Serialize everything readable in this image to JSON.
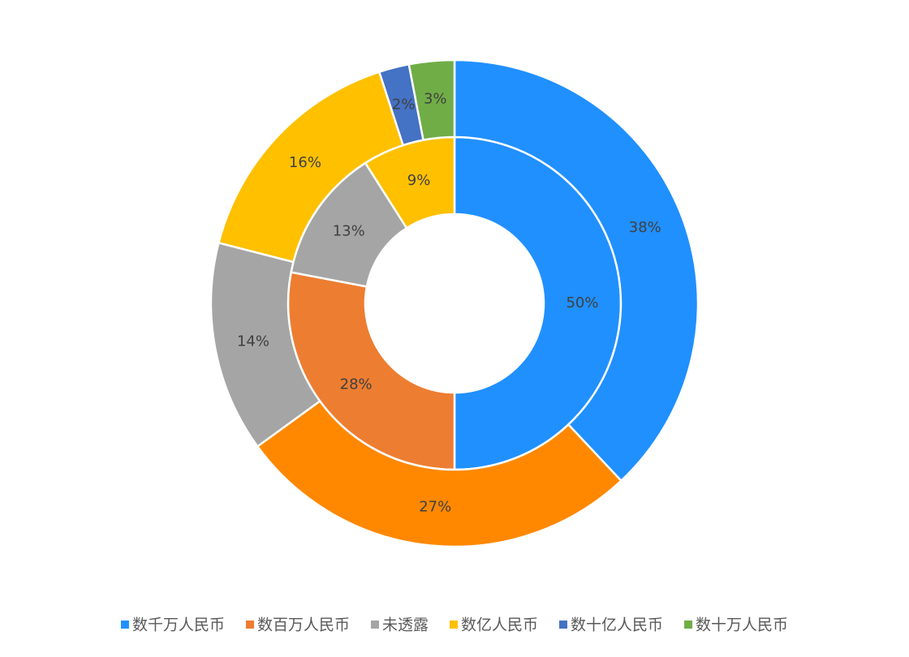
{
  "chart_data": {
    "type": "nested-donut",
    "categories": [
      "数千万人民币",
      "数百万人民币",
      "未透露",
      "数亿人民币",
      "数十亿人民币",
      "数十万人民币"
    ],
    "colors": [
      "#2090ff",
      "#ed7d31",
      "#a5a5a5",
      "#ffc000",
      "#4472c4",
      "#70ad47"
    ],
    "rings": [
      {
        "values": [
          50,
          28,
          13,
          9
        ],
        "value_labels": [
          "50%",
          "28%",
          "13%",
          "9%"
        ]
      },
      {
        "values": [
          38,
          27,
          14,
          16,
          2,
          3
        ],
        "value_labels": [
          "38%",
          "27%",
          "14%",
          "16%",
          "2%",
          "3%"
        ],
        "colors": [
          "#2090ff",
          "#ff8800",
          "#a5a5a5",
          "#ffc000",
          "#4472c4",
          "#70ad47"
        ]
      }
    ]
  }
}
